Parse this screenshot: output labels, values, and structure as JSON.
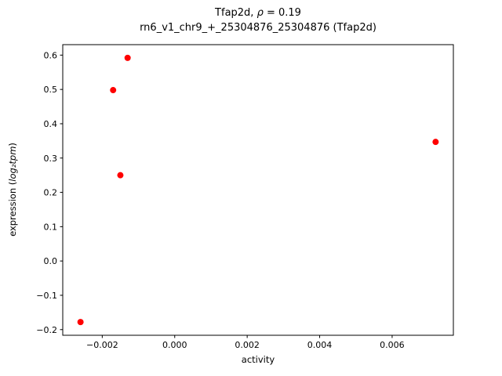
{
  "figure": {
    "background": "#ffffff",
    "title_line1": {
      "prefix": "Tfap2d, ",
      "rho": "ρ",
      "suffix": " = 0.19"
    },
    "title_line2": "rn6_v1_chr9_+_25304876_25304876 (Tfap2d)",
    "ylabel_parts": {
      "prefix": "expression (",
      "math": "log₂tpm",
      "suffix": ")"
    }
  },
  "chart_data": {
    "type": "scatter",
    "title": "Tfap2d, ρ = 0.19",
    "subtitle": "rn6_v1_chr9_+_25304876_25304876 (Tfap2d)",
    "xlabel": "activity",
    "ylabel": "expression (log₂tpm)",
    "legend": "none",
    "grid": false,
    "marker": {
      "shape": "circle",
      "color": "#ff0000",
      "radius_px": 4
    },
    "axis_color": "#000000",
    "xlim": [
      -0.00309,
      0.00769
    ],
    "ylim": [
      -0.2165,
      0.6305
    ],
    "points": [
      {
        "x": -0.0026,
        "y": -0.178
      },
      {
        "x": -0.0017,
        "y": 0.498
      },
      {
        "x": -0.0015,
        "y": 0.25
      },
      {
        "x": -0.0013,
        "y": 0.592
      },
      {
        "x": 0.0072,
        "y": 0.347
      }
    ],
    "x_ticks": [
      {
        "value": -0.002,
        "label": "−0.002"
      },
      {
        "value": 0.0,
        "label": "0.000"
      },
      {
        "value": 0.002,
        "label": "0.002"
      },
      {
        "value": 0.004,
        "label": "0.004"
      },
      {
        "value": 0.006,
        "label": "0.006"
      }
    ],
    "y_ticks": [
      {
        "value": -0.2,
        "label": "−0.2"
      },
      {
        "value": -0.1,
        "label": "−0.1"
      },
      {
        "value": 0.0,
        "label": "0.0"
      },
      {
        "value": 0.1,
        "label": "0.1"
      },
      {
        "value": 0.2,
        "label": "0.2"
      },
      {
        "value": 0.3,
        "label": "0.3"
      },
      {
        "value": 0.4,
        "label": "0.4"
      },
      {
        "value": 0.5,
        "label": "0.5"
      },
      {
        "value": 0.6,
        "label": "0.6"
      }
    ]
  }
}
